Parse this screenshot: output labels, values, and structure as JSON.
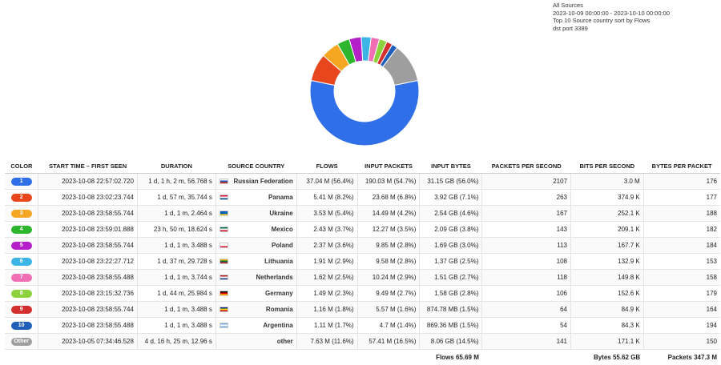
{
  "info": {
    "line1": "All Sources",
    "line2": "2023-10-09 00:00:00 - 2023-10-10 00:00:00",
    "line3": "Top 10 Source country sort by Flows",
    "line4": "dst port 3389"
  },
  "headers": {
    "color": "COLOR",
    "start": "START TIME – FIRST SEEN",
    "duration": "DURATION",
    "country": "SOURCE COUNTRY",
    "flows": "FLOWS",
    "input_packets": "INPUT PACKETS",
    "input_bytes": "INPUT BYTES",
    "pps": "PACKETS PER SECOND",
    "bps": "BITS PER SECOND",
    "bpp": "BYTES PER PACKET"
  },
  "rows": [
    {
      "badge": "1",
      "color": "#2f6fe8",
      "start": "2023-10-08 22:57:02.720",
      "duration": "1 d, 1 h, 2 m, 56.768 s",
      "country": "Russian Federation",
      "flows": "37.04 M (56.4%)",
      "input_packets": "190.03 M (54.7%)",
      "input_bytes": "31.15 GB (56.0%)",
      "pps": "2107",
      "bps": "3.0 M",
      "bpp": "176",
      "share": 56.4
    },
    {
      "badge": "2",
      "color": "#e8461c",
      "start": "2023-10-08 23:02:23.744",
      "duration": "1 d, 57 m, 35.744 s",
      "country": "Panama",
      "flows": "5.41 M (8.2%)",
      "input_packets": "23.68 M (6.8%)",
      "input_bytes": "3.92 GB (7.1%)",
      "pps": "263",
      "bps": "374.9 K",
      "bpp": "177",
      "share": 8.2
    },
    {
      "badge": "3",
      "color": "#f5a623",
      "start": "2023-10-08 23:58:55.744",
      "duration": "1 d, 1 m, 2.464 s",
      "country": "Ukraine",
      "flows": "3.53 M (5.4%)",
      "input_packets": "14.49 M (4.2%)",
      "input_bytes": "2.54 GB (4.6%)",
      "pps": "167",
      "bps": "252.1 K",
      "bpp": "188",
      "share": 5.4
    },
    {
      "badge": "4",
      "color": "#2db52d",
      "start": "2023-10-08 23:59:01.888",
      "duration": "23 h, 50 m, 18.624 s",
      "country": "Mexico",
      "flows": "2.43 M (3.7%)",
      "input_packets": "12.27 M (3.5%)",
      "input_bytes": "2.09 GB (3.8%)",
      "pps": "143",
      "bps": "209.1 K",
      "bpp": "182",
      "share": 3.7
    },
    {
      "badge": "5",
      "color": "#b51fc9",
      "start": "2023-10-08 23:58:55.744",
      "duration": "1 d, 1 m, 3.488 s",
      "country": "Poland",
      "flows": "2.37 M (3.6%)",
      "input_packets": "9.85 M (2.8%)",
      "input_bytes": "1.69 GB (3.0%)",
      "pps": "113",
      "bps": "167.7 K",
      "bpp": "184",
      "share": 3.6
    },
    {
      "badge": "6",
      "color": "#3cb4e6",
      "start": "2023-10-08 23:22:27.712",
      "duration": "1 d, 37 m, 29.728 s",
      "country": "Lithuania",
      "flows": "1.91 M (2.9%)",
      "input_packets": "9.58 M (2.8%)",
      "input_bytes": "1.37 GB (2.5%)",
      "pps": "108",
      "bps": "132.9 K",
      "bpp": "153",
      "share": 2.9
    },
    {
      "badge": "7",
      "color": "#f06eb4",
      "start": "2023-10-08 23:58:55.488",
      "duration": "1 d, 1 m, 3.744 s",
      "country": "Netherlands",
      "flows": "1.62 M (2.5%)",
      "input_packets": "10.24 M (2.9%)",
      "input_bytes": "1.51 GB (2.7%)",
      "pps": "118",
      "bps": "149.8 K",
      "bpp": "158",
      "share": 2.5
    },
    {
      "badge": "8",
      "color": "#8cd23c",
      "start": "2023-10-08 23:15:32.736",
      "duration": "1 d, 44 m, 25.984 s",
      "country": "Germany",
      "flows": "1.49 M (2.3%)",
      "input_packets": "9.49 M (2.7%)",
      "input_bytes": "1.58 GB (2.8%)",
      "pps": "106",
      "bps": "152.6 K",
      "bpp": "179",
      "share": 2.3
    },
    {
      "badge": "9",
      "color": "#d32f2f",
      "start": "2023-10-08 23:58:55.744",
      "duration": "1 d, 1 m, 3.488 s",
      "country": "Romania",
      "flows": "1.16 M (1.8%)",
      "input_packets": "5.57 M (1.6%)",
      "input_bytes": "874.78 MB (1.5%)",
      "pps": "64",
      "bps": "84.9 K",
      "bpp": "164",
      "share": 1.8
    },
    {
      "badge": "10",
      "color": "#1f5fb8",
      "start": "2023-10-08 23:58:55.488",
      "duration": "1 d, 1 m, 3.488 s",
      "country": "Argentina",
      "flows": "1.11 M (1.7%)",
      "input_packets": "4.7 M (1.4%)",
      "input_bytes": "869.36 MB (1.5%)",
      "pps": "54",
      "bps": "84.3 K",
      "bpp": "194",
      "share": 1.7
    },
    {
      "badge": "Other",
      "color": "#9e9e9e",
      "start": "2023-10-05 07:34:46.528",
      "duration": "4 d, 16 h, 25 m, 12.96 s",
      "country": "other",
      "flows": "7.63 M (11.6%)",
      "input_packets": "57.41 M (16.5%)",
      "input_bytes": "8.06 GB (14.5%)",
      "pps": "141",
      "bps": "171.1 K",
      "bpp": "150",
      "share": 11.6
    }
  ],
  "flags": [
    [
      "#ffffff",
      "#1c57a7",
      "#d52b1e"
    ],
    [
      "#d21034",
      "#ffffff",
      "#005293"
    ],
    [
      "#005bbb",
      "#005bbb",
      "#ffd500"
    ],
    [
      "#006847",
      "#ffffff",
      "#ce1126"
    ],
    [
      "#ffffff",
      "#ffffff",
      "#dc143c"
    ],
    [
      "#fdb913",
      "#006a44",
      "#c1272d"
    ],
    [
      "#ae1c28",
      "#ffffff",
      "#21468b"
    ],
    [
      "#000000",
      "#dd0000",
      "#ffce00"
    ],
    [
      "#002b7f",
      "#fcd116",
      "#ce1126"
    ],
    [
      "#74acdf",
      "#ffffff",
      "#74acdf"
    ]
  ],
  "totals": {
    "flows": "Flows 65.69 M",
    "bytes": "Bytes 55.62 GB",
    "packets": "Packets 347.3 M"
  },
  "chart_data": {
    "type": "pie",
    "donut": true,
    "labels": [
      "Russian Federation",
      "Panama",
      "Ukraine",
      "Mexico",
      "Poland",
      "Lithuania",
      "Netherlands",
      "Germany",
      "Romania",
      "Argentina",
      "other"
    ],
    "values": [
      56.4,
      8.2,
      5.4,
      3.7,
      3.6,
      2.9,
      2.5,
      2.3,
      1.8,
      1.7,
      11.6
    ],
    "colors": [
      "#2f6fe8",
      "#e8461c",
      "#f5a623",
      "#2db52d",
      "#b51fc9",
      "#3cb4e6",
      "#f06eb4",
      "#8cd23c",
      "#d32f2f",
      "#1f5fb8",
      "#9e9e9e"
    ]
  }
}
